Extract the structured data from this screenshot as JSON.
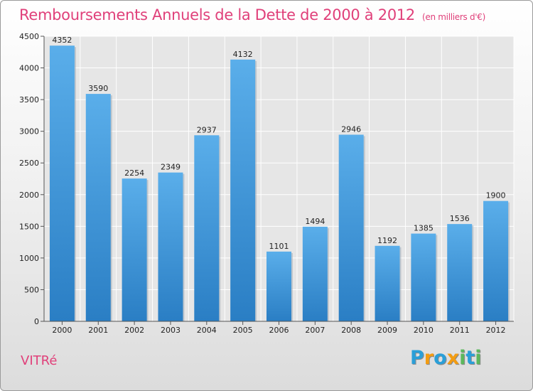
{
  "chart_data": {
    "type": "bar",
    "title": "Remboursements Annuels de la Dette de 2000 à 2012",
    "subtitle": "(en milliers d'€)",
    "categories": [
      "2000",
      "2001",
      "2002",
      "2003",
      "2004",
      "2005",
      "2006",
      "2007",
      "2008",
      "2009",
      "2010",
      "2011",
      "2012"
    ],
    "values": [
      4352,
      3590,
      2254,
      2349,
      2937,
      4132,
      1101,
      1494,
      2946,
      1192,
      1385,
      1536,
      1900
    ],
    "xlabel": "",
    "ylabel": "",
    "ylim": [
      0,
      4500
    ],
    "yticks": [
      0,
      500,
      1000,
      1500,
      2000,
      2500,
      3000,
      3500,
      4000,
      4500
    ],
    "grid": true,
    "bar_color": "#3a8fd6"
  },
  "footer": {
    "city": "VITRé",
    "logo_letters": [
      "P",
      "r",
      "o",
      "x",
      "i",
      "t",
      "i"
    ],
    "logo_colors": [
      "#2a9fd8",
      "#f39c12",
      "#2a9fd8",
      "#f39c12",
      "#5cb85c",
      "#2a9fd8",
      "#5cb85c"
    ]
  }
}
